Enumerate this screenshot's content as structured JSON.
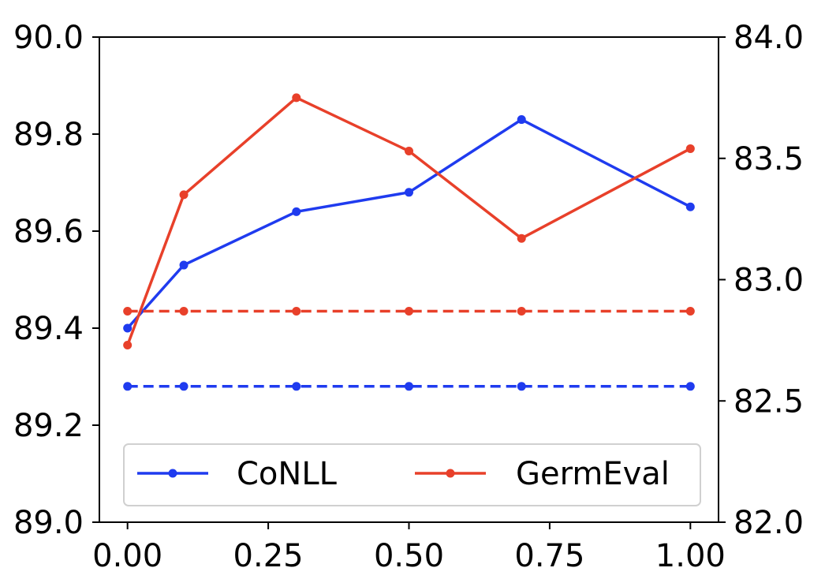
{
  "chart_data": {
    "type": "line",
    "x": [
      0.0,
      0.1,
      0.3,
      0.5,
      0.7,
      1.0
    ],
    "xlim": [
      -0.05,
      1.05
    ],
    "x_ticks": [
      "0.00",
      "0.25",
      "0.50",
      "0.75",
      "1.00"
    ],
    "x_tick_values": [
      0.0,
      0.25,
      0.5,
      0.75,
      1.0
    ],
    "y_left": {
      "lim": [
        89.0,
        90.0
      ],
      "ticks": [
        "89.0",
        "89.2",
        "89.4",
        "89.6",
        "89.8",
        "90.0"
      ],
      "tick_values": [
        89.0,
        89.2,
        89.4,
        89.6,
        89.8,
        90.0
      ]
    },
    "y_right": {
      "lim": [
        82.0,
        84.0
      ],
      "ticks": [
        "82.0",
        "82.5",
        "83.0",
        "83.5",
        "84.0"
      ],
      "tick_values": [
        82.0,
        82.5,
        83.0,
        83.5,
        84.0
      ]
    },
    "grid": false,
    "legend_position": "lower-center",
    "series": [
      {
        "name": "CoNLL",
        "axis": "left",
        "color": "#1f3bef",
        "style": "solid",
        "values": [
          89.4,
          89.53,
          89.64,
          89.68,
          89.83,
          89.65
        ]
      },
      {
        "name": "GermEval",
        "axis": "right",
        "color": "#e8402a",
        "style": "solid",
        "values": [
          82.73,
          83.35,
          83.75,
          83.53,
          83.17,
          83.54
        ]
      },
      {
        "axis": "left",
        "color": "#1f3bef",
        "style": "dashed",
        "values": [
          89.28,
          89.28,
          89.28,
          89.28,
          89.28,
          89.28
        ]
      },
      {
        "axis": "right",
        "color": "#e8402a",
        "style": "dashed",
        "values": [
          82.87,
          82.87,
          82.87,
          82.87,
          82.87,
          82.87
        ]
      }
    ]
  }
}
